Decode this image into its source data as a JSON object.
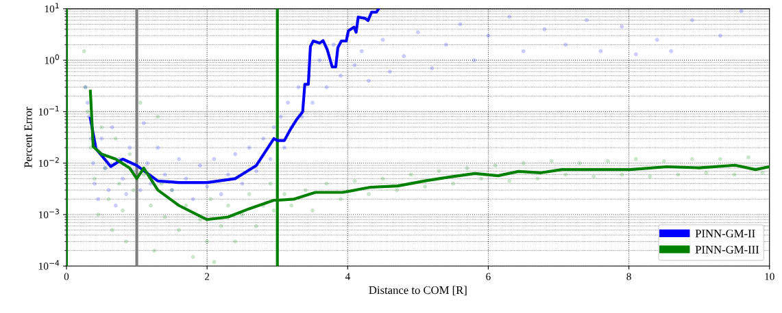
{
  "chart_data": {
    "type": "scatter",
    "xlabel": "Distance to COM [R]",
    "ylabel": "Percent Error",
    "log": "y",
    "grid": true,
    "legend": "bottom right",
    "xlim": [
      0,
      10
    ],
    "xticks": [
      0,
      2,
      4,
      6,
      8,
      10
    ],
    "ylim": [
      0.0001,
      10
    ],
    "yticks": [
      {
        "value": 0.0001,
        "label": "10$^{−4}$"
      },
      {
        "value": 0.001,
        "label": "10$^{−3}$"
      },
      {
        "value": 0.01,
        "label": "10$^{−2}$"
      },
      {
        "value": 0.1,
        "label": "10$^{−1}$"
      },
      {
        "value": 1,
        "label": "10$^{0}$"
      },
      {
        "value": 10,
        "label": "10$^{1}$"
      }
    ],
    "ref_lines": [
      {
        "axis": "x",
        "value": 0,
        "color": "#008000"
      },
      {
        "axis": "x",
        "value": 1,
        "color": "#808080"
      },
      {
        "axis": "x",
        "value": 3,
        "color": "#008000"
      }
    ],
    "series": [
      {
        "marker": "circle",
        "color": "#0000ff",
        "x": [
          0.27,
          0.3,
          0.32,
          0.35,
          0.38,
          0.4,
          0.45,
          0.5,
          0.55,
          0.6,
          0.65,
          0.7,
          0.75,
          0.8,
          0.85,
          0.9,
          0.95,
          1.05,
          1.1,
          1.15,
          1.2,
          1.3,
          1.4,
          1.5,
          1.6,
          1.7,
          1.8,
          1.9,
          2.0,
          2.1,
          2.2,
          2.3,
          2.4,
          2.5,
          2.6,
          2.7,
          2.8,
          2.9,
          2.95,
          3.05,
          3.1,
          3.15,
          3.2,
          3.3,
          3.35,
          3.45,
          3.5,
          3.6,
          3.7,
          3.8,
          3.9,
          4.0,
          4.1,
          4.2,
          4.3,
          4.5,
          4.6,
          4.8,
          5.0,
          5.2,
          5.4,
          5.6,
          5.8,
          6.0,
          6.3,
          6.5,
          6.8,
          7.1,
          7.4,
          7.6,
          7.9,
          8.1,
          8.4,
          8.6,
          8.9,
          9.3,
          9.6
        ],
        "values": [
          0.3,
          0.15,
          0.08,
          0.03,
          0.01,
          0.004,
          0.002,
          0.03,
          0.008,
          0.003,
          0.05,
          0.0015,
          0.012,
          0.005,
          0.0025,
          0.02,
          0.007,
          0.003,
          0.06,
          0.01,
          0.004,
          0.02,
          0.006,
          0.003,
          0.012,
          0.005,
          0.002,
          0.009,
          0.0035,
          0.012,
          0.0025,
          0.006,
          0.015,
          0.004,
          0.02,
          0.007,
          0.03,
          0.012,
          0.05,
          0.08,
          0.02,
          0.15,
          0.05,
          0.3,
          0.08,
          0.5,
          0.15,
          1.0,
          0.3,
          2.0,
          0.5,
          3.0,
          0.8,
          1.5,
          0.4,
          2.5,
          0.6,
          1.2,
          3.5,
          0.7,
          2.0,
          5.0,
          1.0,
          3.0,
          7.0,
          1.5,
          4.0,
          2.0,
          6.0,
          1.5,
          4.5,
          1.3,
          2.5,
          1.5,
          6.0,
          3.0,
          9.0
        ]
      },
      {
        "marker": "circle",
        "color": "#008000",
        "x": [
          0.25,
          0.27,
          0.3,
          0.35,
          0.4,
          0.45,
          0.5,
          0.55,
          0.6,
          0.65,
          0.7,
          0.75,
          0.8,
          0.85,
          0.9,
          0.95,
          1.0,
          1.05,
          1.1,
          1.2,
          1.25,
          1.3,
          1.35,
          1.4,
          1.5,
          1.6,
          1.7,
          1.8,
          1.9,
          2.0,
          2.05,
          2.1,
          2.2,
          2.3,
          2.4,
          2.5,
          2.6,
          2.7,
          2.8,
          2.9,
          2.95,
          3.1,
          3.2,
          3.4,
          3.5,
          3.7,
          3.9,
          4.1,
          4.3,
          4.5,
          4.7,
          4.9,
          5.1,
          5.3,
          5.5,
          5.7,
          5.9,
          6.1,
          6.3,
          6.5,
          6.7,
          6.9,
          7.1,
          7.3,
          7.5,
          7.7,
          7.9,
          8.1,
          8.3,
          8.5,
          8.7,
          8.9,
          9.1,
          9.3,
          9.5,
          9.7,
          9.9
        ],
        "values": [
          1.5,
          0.3,
          0.1,
          0.02,
          0.005,
          0.001,
          0.05,
          0.008,
          0.002,
          0.0005,
          0.03,
          0.004,
          0.0012,
          0.0003,
          0.015,
          0.003,
          0.0008,
          0.15,
          0.006,
          0.0015,
          0.0002,
          0.08,
          0.004,
          0.0009,
          0.003,
          0.0005,
          0.0015,
          0.00015,
          0.0008,
          0.0003,
          0.002,
          0.00012,
          0.0006,
          0.0015,
          0.0003,
          0.001,
          0.0025,
          0.0006,
          0.0015,
          0.004,
          0.0012,
          0.0025,
          0.0015,
          0.003,
          0.0012,
          0.004,
          0.002,
          0.0045,
          0.0025,
          0.005,
          0.003,
          0.006,
          0.0035,
          0.007,
          0.004,
          0.008,
          0.005,
          0.009,
          0.0045,
          0.01,
          0.005,
          0.011,
          0.006,
          0.01,
          0.0055,
          0.011,
          0.006,
          0.012,
          0.0055,
          0.011,
          0.006,
          0.012,
          0.0065,
          0.012,
          0.006,
          0.013,
          0.0065
        ]
      },
      {
        "type": "line",
        "name": "PINN-GM-II",
        "color": "#0000ff",
        "x": [
          0.34,
          0.42,
          0.63,
          0.8,
          1.0,
          1.3,
          1.6,
          2.0,
          2.4,
          2.7,
          2.95,
          3.0,
          3.1,
          3.18,
          3.27,
          3.36,
          3.39,
          3.44,
          3.47,
          3.51,
          3.6,
          3.65,
          3.71,
          3.78,
          3.83,
          3.86,
          3.91,
          3.98,
          4.01,
          4.09,
          4.12,
          4.15,
          4.25,
          4.29,
          4.34,
          4.41,
          4.44
        ],
        "values": [
          0.074,
          0.019,
          0.0086,
          0.012,
          0.009,
          0.0045,
          0.0042,
          0.0042,
          0.005,
          0.009,
          0.03,
          0.0275,
          0.0275,
          0.044,
          0.069,
          0.1,
          0.34,
          0.34,
          1.85,
          2.36,
          2.15,
          2.4,
          1.6,
          0.74,
          0.74,
          1.75,
          2.36,
          2.36,
          3.74,
          4.4,
          3.5,
          6.9,
          6.5,
          5.9,
          8.6,
          8.6,
          10
        ]
      },
      {
        "type": "line",
        "name": "PINN-GM-III",
        "color": "#008000",
        "x": [
          0.34,
          0.38,
          0.5,
          0.7,
          0.9,
          1.0,
          1.1,
          1.3,
          1.6,
          2.0,
          2.3,
          2.6,
          2.95,
          3.0,
          3.24,
          3.54,
          3.93,
          4.32,
          4.71,
          5.13,
          5.46,
          5.81,
          6.14,
          6.43,
          6.75,
          7.05,
          7.44,
          8.02,
          8.54,
          9.0,
          9.51,
          9.8,
          10
        ],
        "values": [
          0.25,
          0.021,
          0.015,
          0.012,
          0.008,
          0.005,
          0.008,
          0.003,
          0.0015,
          0.0008,
          0.0009,
          0.0013,
          0.0019,
          0.0019,
          0.002,
          0.0027,
          0.0027,
          0.0034,
          0.0036,
          0.0046,
          0.0054,
          0.0063,
          0.0057,
          0.0069,
          0.0065,
          0.0075,
          0.0075,
          0.0075,
          0.0085,
          0.0081,
          0.0091,
          0.0075,
          0.0085
        ]
      }
    ]
  }
}
